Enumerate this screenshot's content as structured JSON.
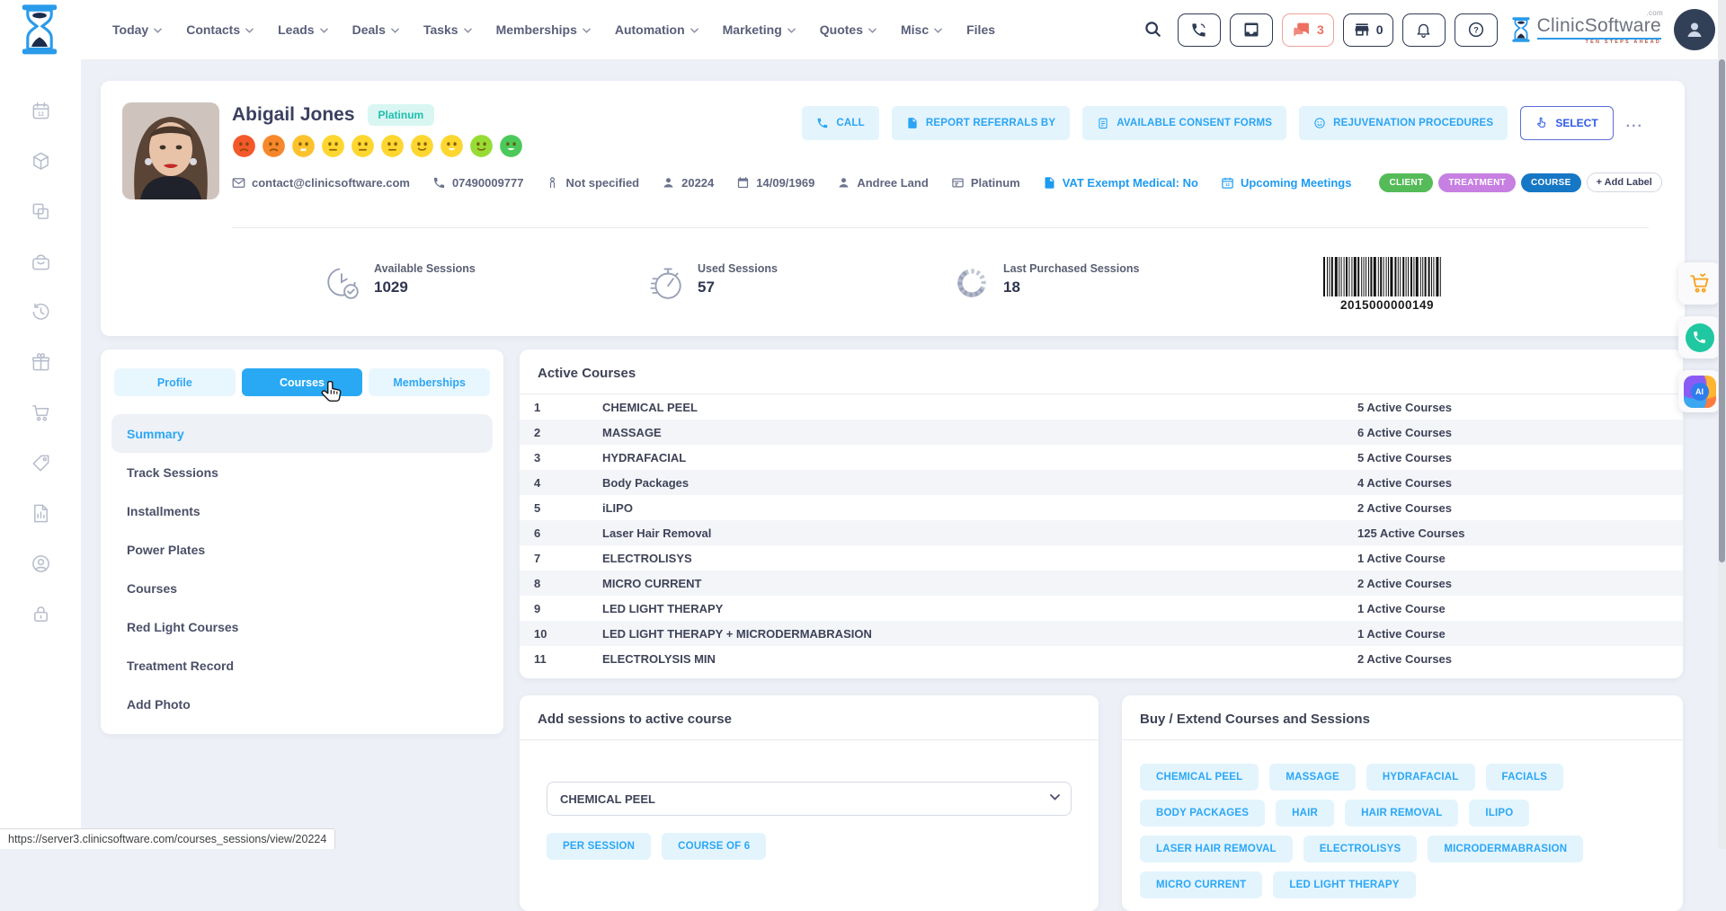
{
  "nav": {
    "items": [
      {
        "label": "Today",
        "chevron": true
      },
      {
        "label": "Contacts",
        "chevron": true
      },
      {
        "label": "Leads",
        "chevron": true
      },
      {
        "label": "Deals",
        "chevron": true
      },
      {
        "label": "Tasks",
        "chevron": true
      },
      {
        "label": "Memberships",
        "chevron": true
      },
      {
        "label": "Automation",
        "chevron": true
      },
      {
        "label": "Marketing",
        "chevron": true
      },
      {
        "label": "Quotes",
        "chevron": true
      },
      {
        "label": "Misc",
        "chevron": true
      },
      {
        "label": "Files",
        "chevron": false
      }
    ]
  },
  "topbar": {
    "chat_count": "3",
    "store_count": "0",
    "logo": {
      "text": "ClinicSoftware",
      "suffix": ".com",
      "tagline": "TEN STEPS AHEAD"
    },
    "icons": [
      "search-icon",
      "phone-call-icon",
      "inbox-icon",
      "chat-icon",
      "store-icon",
      "bell-icon",
      "help-icon"
    ]
  },
  "sidebar": {
    "icons": [
      "calendar",
      "package",
      "copy",
      "basket",
      "history",
      "gift",
      "cart",
      "tag",
      "report",
      "account",
      "lock"
    ]
  },
  "client": {
    "name": "Abigail Jones",
    "tier": "Platinum",
    "mood_scale": {
      "faces": [
        {
          "color": "#f4582b",
          "mouth": "sad"
        },
        {
          "color": "#f8872b",
          "mouth": "sad"
        },
        {
          "color": "#fcc22d",
          "mouth": "open-flat"
        },
        {
          "color": "#fdd62f",
          "mouth": "neutral"
        },
        {
          "color": "#fdd62f",
          "mouth": "neutral"
        },
        {
          "color": "#fdd62f",
          "mouth": "neutral"
        },
        {
          "color": "#fdd62f",
          "mouth": "smile"
        },
        {
          "color": "#fdd630",
          "mouth": "open"
        },
        {
          "color": "#97dc35",
          "mouth": "smile"
        },
        {
          "color": "#4cc95a",
          "mouth": "open"
        }
      ]
    },
    "info": [
      {
        "icon": "mail",
        "text": "contact@clinicsoftware.com",
        "link": false
      },
      {
        "icon": "phone",
        "text": "07490009777",
        "link": false
      },
      {
        "icon": "person-outline",
        "text": "Not specified",
        "link": false
      },
      {
        "icon": "user",
        "text": "20224",
        "link": false
      },
      {
        "icon": "calendar",
        "text": "14/09/1969",
        "link": false
      },
      {
        "icon": "user",
        "text": "Andree Land",
        "link": false
      },
      {
        "icon": "card",
        "text": "Platinum",
        "link": false
      },
      {
        "icon": "doc",
        "text": "VAT Exempt Medical: No",
        "link": true
      },
      {
        "icon": "meeting",
        "text": "Upcoming Meetings",
        "link": true
      }
    ],
    "labels": [
      {
        "text": "CLIENT",
        "color": "#55bb58"
      },
      {
        "text": "TREATMENT",
        "color": "#c77fe2"
      },
      {
        "text": "COURSE",
        "color": "#1677c5"
      }
    ],
    "add_label": "+ Add Label"
  },
  "actions": [
    {
      "label": "CALL",
      "icon": "phone",
      "style": "soft"
    },
    {
      "label": "REPORT REFERRALS BY",
      "icon": "doc",
      "style": "soft"
    },
    {
      "label": "AVAILABLE CONSENT FORMS",
      "icon": "clipboard",
      "style": "soft"
    },
    {
      "label": "REJUVENATION PROCEDURES",
      "icon": "face",
      "style": "soft"
    },
    {
      "label": "SELECT",
      "icon": "pointer",
      "style": "outline"
    },
    {
      "label": "...",
      "icon": "",
      "style": "more"
    }
  ],
  "stats": [
    {
      "label": "Available Sessions",
      "value": "1029",
      "icon": "clock-check"
    },
    {
      "label": "Used Sessions",
      "value": "57",
      "icon": "stopwatch"
    },
    {
      "label": "Last Purchased Sessions",
      "value": "18",
      "icon": "donut"
    }
  ],
  "barcode": {
    "value": "2015000000149"
  },
  "panel": {
    "tabs": [
      {
        "label": "Profile",
        "active": false
      },
      {
        "label": "Courses",
        "active": true
      },
      {
        "label": "Memberships",
        "active": false
      }
    ],
    "menu": [
      {
        "label": "Summary",
        "active": true
      },
      {
        "label": "Track Sessions",
        "active": false
      },
      {
        "label": "Installments",
        "active": false
      },
      {
        "label": "Power Plates",
        "active": false
      },
      {
        "label": "Courses",
        "active": false
      },
      {
        "label": "Red Light Courses",
        "active": false
      },
      {
        "label": "Treatment Record",
        "active": false
      },
      {
        "label": "Add Photo",
        "active": false
      }
    ]
  },
  "active_courses": {
    "title": "Active Courses",
    "rows": [
      {
        "num": "1",
        "name": "CHEMICAL PEEL",
        "count": "5 Active Courses"
      },
      {
        "num": "2",
        "name": "MASSAGE",
        "count": "6 Active Courses"
      },
      {
        "num": "3",
        "name": "HYDRAFACIAL",
        "count": "5 Active Courses"
      },
      {
        "num": "4",
        "name": "Body Packages",
        "count": "4 Active Courses"
      },
      {
        "num": "5",
        "name": "iLIPO",
        "count": "2 Active Courses"
      },
      {
        "num": "6",
        "name": "Laser Hair Removal",
        "count": "125 Active Courses"
      },
      {
        "num": "7",
        "name": "ELECTROLISYS",
        "count": "1 Active Course"
      },
      {
        "num": "8",
        "name": "MICRO CURRENT",
        "count": "2 Active Courses"
      },
      {
        "num": "9",
        "name": "LED LIGHT THERAPY",
        "count": "1 Active Course"
      },
      {
        "num": "10",
        "name": "LED LIGHT THERAPY + MICRODERMABRASION",
        "count": "1 Active Course"
      },
      {
        "num": "11",
        "name": "ELECTROLYSIS MIN",
        "count": "2 Active Courses"
      }
    ]
  },
  "add_sessions": {
    "title": "Add sessions to active course",
    "selected_course": "CHEMICAL PEEL",
    "options": [
      "PER SESSION",
      "COURSE OF 6"
    ]
  },
  "buy_extend": {
    "title": "Buy / Extend Courses and Sessions",
    "courses": [
      "CHEMICAL PEEL",
      "MASSAGE",
      "HYDRAFACIAL",
      "FACIALS",
      "BODY PACKAGES",
      "HAIR",
      "HAIR REMOVAL",
      "ILIPO",
      "LASER HAIR REMOVAL",
      "ELECTROLISYS",
      "MICRODERMABRASION",
      "MICRO CURRENT",
      "LED LIGHT THERAPY"
    ]
  },
  "floating": {
    "buttons": [
      "cart",
      "whatsapp",
      "ai"
    ],
    "ai_label": "AI"
  },
  "statusbar": {
    "url": "https://server3.clinicsoftware.com/courses_sessions/view/20224"
  },
  "colors": {
    "accent": "#29a9f4",
    "accent_soft": "#e3f4fd",
    "link": "#1e9bf0",
    "navy": "#2e3a53",
    "alert": "#ee6f61"
  }
}
